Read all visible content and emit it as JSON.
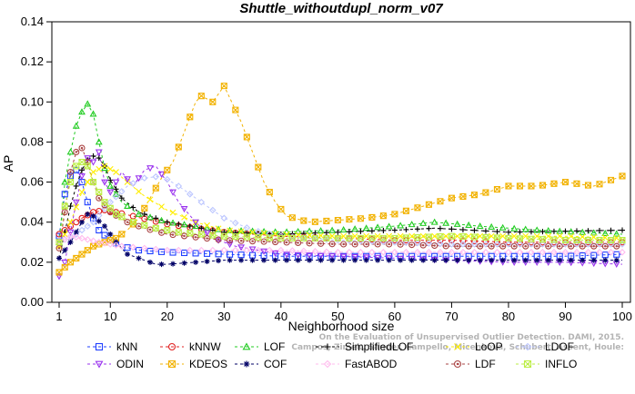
{
  "chart_data": {
    "type": "line",
    "title": "Shuttle_withoutdupl_norm_v07",
    "xlabel": "Neighborhood size",
    "ylabel": "AP",
    "xlim": [
      1,
      100
    ],
    "ylim": [
      0,
      0.14
    ],
    "xticks": [
      "1",
      "10",
      "20",
      "30",
      "40",
      "50",
      "60",
      "70",
      "80",
      "90",
      "100"
    ],
    "yticks": [
      "0.00",
      "0.02",
      "0.04",
      "0.06",
      "0.08",
      "0.10",
      "0.12",
      "0.14"
    ],
    "watermark": [
      "Campos, Zimek, Sander, Campello, Micenkova, Schubert, Assent, Houle:",
      "On the Evaluation of Unsupervised Outlier Detection. DAMI, 2015."
    ],
    "series": [
      {
        "name": "kNN",
        "color": "#1f3fff",
        "marker": "square",
        "points": [
          [
            1,
            0.033
          ],
          [
            2,
            0.054
          ],
          [
            3,
            0.063
          ],
          [
            4,
            0.066
          ],
          [
            5,
            0.06
          ],
          [
            6,
            0.05
          ],
          [
            7,
            0.042
          ],
          [
            8,
            0.036
          ],
          [
            10,
            0.031
          ],
          [
            12,
            0.028
          ],
          [
            15,
            0.026
          ],
          [
            20,
            0.025
          ],
          [
            30,
            0.024
          ],
          [
            40,
            0.023
          ],
          [
            50,
            0.023
          ],
          [
            60,
            0.023
          ],
          [
            70,
            0.023
          ],
          [
            80,
            0.023
          ],
          [
            90,
            0.023
          ],
          [
            100,
            0.024
          ]
        ]
      },
      {
        "name": "kNNW",
        "color": "#e02020",
        "marker": "circle",
        "points": [
          [
            1,
            0.034
          ],
          [
            3,
            0.038
          ],
          [
            5,
            0.042
          ],
          [
            7,
            0.045
          ],
          [
            9,
            0.046
          ],
          [
            11,
            0.045
          ],
          [
            14,
            0.043
          ],
          [
            17,
            0.041
          ],
          [
            20,
            0.039
          ],
          [
            25,
            0.037
          ],
          [
            30,
            0.035
          ],
          [
            40,
            0.033
          ],
          [
            50,
            0.032
          ],
          [
            60,
            0.031
          ],
          [
            70,
            0.031
          ],
          [
            80,
            0.03
          ],
          [
            90,
            0.03
          ],
          [
            100,
            0.03
          ]
        ]
      },
      {
        "name": "LOF",
        "color": "#22cc22",
        "marker": "triangle-up",
        "points": [
          [
            1,
            0.03
          ],
          [
            2,
            0.06
          ],
          [
            3,
            0.075
          ],
          [
            4,
            0.088
          ],
          [
            5,
            0.095
          ],
          [
            6,
            0.099
          ],
          [
            7,
            0.094
          ],
          [
            8,
            0.08
          ],
          [
            9,
            0.067
          ],
          [
            10,
            0.058
          ],
          [
            12,
            0.05
          ],
          [
            15,
            0.044
          ],
          [
            20,
            0.04
          ],
          [
            25,
            0.038
          ],
          [
            30,
            0.036
          ],
          [
            40,
            0.035
          ],
          [
            50,
            0.036
          ],
          [
            60,
            0.038
          ],
          [
            67,
            0.04
          ],
          [
            75,
            0.038
          ],
          [
            85,
            0.036
          ],
          [
            100,
            0.034
          ]
        ]
      },
      {
        "name": "SimplifiedLOF",
        "color": "#000000",
        "marker": "plus",
        "points": [
          [
            1,
            0.022
          ],
          [
            2,
            0.035
          ],
          [
            3,
            0.048
          ],
          [
            4,
            0.058
          ],
          [
            5,
            0.066
          ],
          [
            6,
            0.071
          ],
          [
            7,
            0.073
          ],
          [
            8,
            0.072
          ],
          [
            9,
            0.068
          ],
          [
            10,
            0.061
          ],
          [
            12,
            0.052
          ],
          [
            15,
            0.045
          ],
          [
            20,
            0.04
          ],
          [
            30,
            0.035
          ],
          [
            40,
            0.034
          ],
          [
            50,
            0.035
          ],
          [
            60,
            0.036
          ],
          [
            67,
            0.037
          ],
          [
            80,
            0.035
          ],
          [
            100,
            0.036
          ]
        ]
      },
      {
        "name": "LoOP",
        "color": "#ffee00",
        "marker": "x",
        "points": [
          [
            1,
            0.028
          ],
          [
            3,
            0.04
          ],
          [
            5,
            0.055
          ],
          [
            7,
            0.065
          ],
          [
            9,
            0.068
          ],
          [
            11,
            0.065
          ],
          [
            13,
            0.06
          ],
          [
            16,
            0.053
          ],
          [
            20,
            0.046
          ],
          [
            25,
            0.04
          ],
          [
            30,
            0.036
          ],
          [
            40,
            0.034
          ],
          [
            50,
            0.033
          ],
          [
            60,
            0.033
          ],
          [
            70,
            0.033
          ],
          [
            80,
            0.033
          ],
          [
            90,
            0.033
          ],
          [
            100,
            0.032
          ]
        ]
      },
      {
        "name": "LDOF",
        "color": "#bcc6ff",
        "marker": "diamond",
        "points": [
          [
            1,
            0.03
          ],
          [
            4,
            0.034
          ],
          [
            7,
            0.04
          ],
          [
            10,
            0.05
          ],
          [
            13,
            0.058
          ],
          [
            16,
            0.062
          ],
          [
            19,
            0.063
          ],
          [
            22,
            0.058
          ],
          [
            26,
            0.05
          ],
          [
            30,
            0.042
          ],
          [
            35,
            0.036
          ],
          [
            40,
            0.033
          ],
          [
            50,
            0.031
          ],
          [
            60,
            0.03
          ],
          [
            70,
            0.029
          ],
          [
            80,
            0.029
          ],
          [
            90,
            0.029
          ],
          [
            100,
            0.029
          ]
        ]
      },
      {
        "name": "ODIN",
        "color": "#9a33ee",
        "marker": "triangle-down",
        "points": [
          [
            1,
            0.013
          ],
          [
            2,
            0.02
          ],
          [
            3,
            0.035
          ],
          [
            4,
            0.05
          ],
          [
            5,
            0.063
          ],
          [
            6,
            0.072
          ],
          [
            7,
            0.07
          ],
          [
            8,
            0.075
          ],
          [
            9,
            0.06
          ],
          [
            10,
            0.055
          ],
          [
            12,
            0.065
          ],
          [
            14,
            0.058
          ],
          [
            16,
            0.066
          ],
          [
            18,
            0.068
          ],
          [
            20,
            0.06
          ],
          [
            22,
            0.05
          ],
          [
            25,
            0.04
          ],
          [
            28,
            0.032
          ],
          [
            32,
            0.028
          ],
          [
            40,
            0.024
          ],
          [
            50,
            0.023
          ],
          [
            60,
            0.022
          ],
          [
            70,
            0.021
          ],
          [
            80,
            0.02
          ],
          [
            90,
            0.02
          ],
          [
            100,
            0.019
          ]
        ]
      },
      {
        "name": "KDEOS",
        "color": "#f2b200",
        "marker": "boxed-x",
        "points": [
          [
            1,
            0.015
          ],
          [
            3,
            0.02
          ],
          [
            5,
            0.024
          ],
          [
            7,
            0.028
          ],
          [
            9,
            0.03
          ],
          [
            11,
            0.032
          ],
          [
            13,
            0.036
          ],
          [
            15,
            0.042
          ],
          [
            17,
            0.052
          ],
          [
            19,
            0.062
          ],
          [
            21,
            0.07
          ],
          [
            23,
            0.085
          ],
          [
            25,
            0.1
          ],
          [
            26,
            0.103
          ],
          [
            28,
            0.1
          ],
          [
            29,
            0.104
          ],
          [
            30,
            0.108
          ],
          [
            31,
            0.102
          ],
          [
            33,
            0.09
          ],
          [
            35,
            0.075
          ],
          [
            37,
            0.06
          ],
          [
            39,
            0.05
          ],
          [
            41,
            0.043
          ],
          [
            45,
            0.04
          ],
          [
            50,
            0.041
          ],
          [
            55,
            0.042
          ],
          [
            60,
            0.044
          ],
          [
            65,
            0.048
          ],
          [
            70,
            0.052
          ],
          [
            75,
            0.054
          ],
          [
            80,
            0.058
          ],
          [
            85,
            0.058
          ],
          [
            90,
            0.06
          ],
          [
            95,
            0.058
          ],
          [
            100,
            0.063
          ]
        ]
      },
      {
        "name": "COF",
        "color": "#000066",
        "marker": "asterisk",
        "points": [
          [
            1,
            0.022
          ],
          [
            3,
            0.03
          ],
          [
            5,
            0.04
          ],
          [
            6,
            0.044
          ],
          [
            7,
            0.043
          ],
          [
            9,
            0.038
          ],
          [
            11,
            0.03
          ],
          [
            13,
            0.024
          ],
          [
            16,
            0.021
          ],
          [
            18,
            0.019
          ],
          [
            20,
            0.019
          ],
          [
            25,
            0.02
          ],
          [
            30,
            0.021
          ],
          [
            40,
            0.021
          ],
          [
            50,
            0.021
          ],
          [
            60,
            0.021
          ],
          [
            70,
            0.021
          ],
          [
            80,
            0.021
          ],
          [
            90,
            0.021
          ],
          [
            100,
            0.021
          ]
        ]
      },
      {
        "name": "FastABOD",
        "color": "#ffbbee",
        "marker": "diamond",
        "points": [
          [
            1,
            0.03
          ],
          [
            3,
            0.033
          ],
          [
            5,
            0.032
          ],
          [
            8,
            0.03
          ],
          [
            12,
            0.028
          ],
          [
            16,
            0.027
          ],
          [
            20,
            0.026
          ],
          [
            30,
            0.026
          ],
          [
            40,
            0.026
          ],
          [
            50,
            0.025
          ],
          [
            60,
            0.025
          ],
          [
            70,
            0.025
          ],
          [
            80,
            0.025
          ],
          [
            90,
            0.025
          ],
          [
            100,
            0.025
          ]
        ]
      },
      {
        "name": "LDF",
        "color": "#aa4444",
        "marker": "circle-dot",
        "points": [
          [
            1,
            0.027
          ],
          [
            2,
            0.045
          ],
          [
            3,
            0.065
          ],
          [
            4,
            0.075
          ],
          [
            5,
            0.077
          ],
          [
            6,
            0.07
          ],
          [
            7,
            0.06
          ],
          [
            8,
            0.052
          ],
          [
            10,
            0.045
          ],
          [
            13,
            0.04
          ],
          [
            16,
            0.037
          ],
          [
            20,
            0.034
          ],
          [
            30,
            0.031
          ],
          [
            40,
            0.03
          ],
          [
            50,
            0.029
          ],
          [
            60,
            0.029
          ],
          [
            70,
            0.028
          ],
          [
            80,
            0.028
          ],
          [
            90,
            0.028
          ],
          [
            100,
            0.028
          ]
        ]
      },
      {
        "name": "INFLO",
        "color": "#bbee44",
        "marker": "boxed-x",
        "points": [
          [
            1,
            0.03
          ],
          [
            2,
            0.048
          ],
          [
            3,
            0.06
          ],
          [
            4,
            0.068
          ],
          [
            5,
            0.07
          ],
          [
            6,
            0.068
          ],
          [
            7,
            0.06
          ],
          [
            9,
            0.05
          ],
          [
            11,
            0.044
          ],
          [
            14,
            0.04
          ],
          [
            18,
            0.037
          ],
          [
            22,
            0.035
          ],
          [
            30,
            0.033
          ],
          [
            40,
            0.032
          ],
          [
            50,
            0.032
          ],
          [
            60,
            0.032
          ],
          [
            70,
            0.033
          ],
          [
            80,
            0.032
          ],
          [
            90,
            0.031
          ],
          [
            100,
            0.031
          ]
        ]
      }
    ],
    "legend_position": "bottom",
    "grid": false
  }
}
